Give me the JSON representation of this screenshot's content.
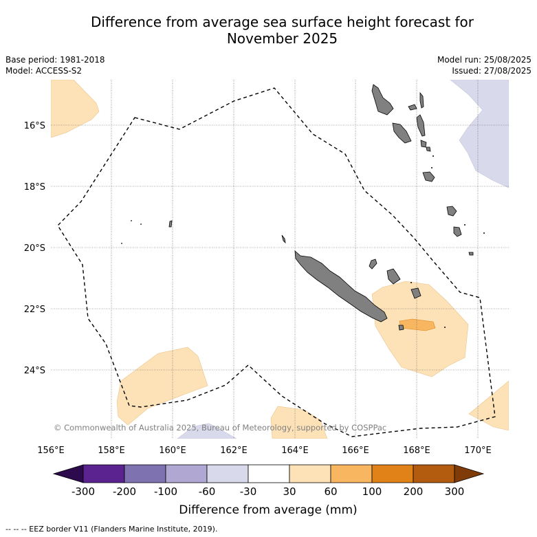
{
  "title_line1": "Difference from average sea surface height forecast for",
  "title_line2": "November 2025",
  "base_period": "Base period: 1981-2018",
  "model": "Model: ACCESS-S2",
  "model_run": "Model run: 25/08/2025",
  "issued": "Issued: 27/08/2025",
  "copyright": "© Commonwealth of Australia 2025, Bureau of Meteorology, supported by COSPPac",
  "lon_labels": [
    "156°E",
    "158°E",
    "160°E",
    "162°E",
    "164°E",
    "166°E",
    "168°E",
    "170°E"
  ],
  "lat_labels": [
    "16°S",
    "18°S",
    "20°S",
    "22°S",
    "24°S"
  ],
  "colorbar": {
    "ticks": [
      "-300",
      "-200",
      "-100",
      "-60",
      "-30",
      "30",
      "60",
      "100",
      "200",
      "300"
    ],
    "colors": [
      "#5b2390",
      "#7f72b0",
      "#b0a8d3",
      "#d9d9ec",
      "#ffffff",
      "#fde2b8",
      "#f9b660",
      "#e08218",
      "#b35b0e"
    ],
    "under_color": "#2d0a4d",
    "over_color": "#7f3c09",
    "label": "Difference from average (mm)"
  },
  "footnote": "--  --  -- EEZ border V11 (Flanders Marine Institute, 2019)."
}
